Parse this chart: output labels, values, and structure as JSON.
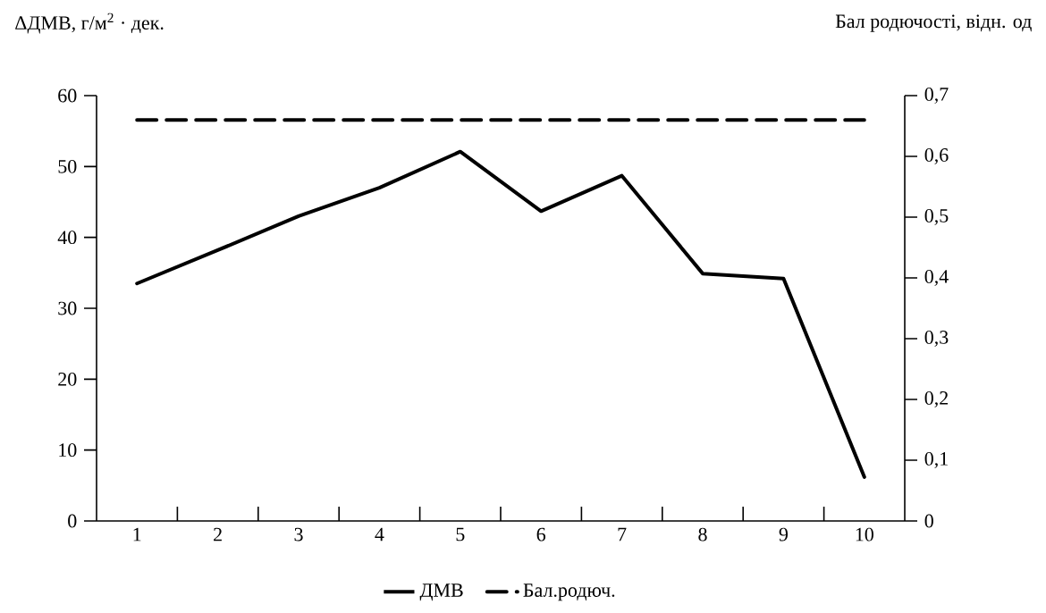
{
  "chart_data": {
    "type": "line",
    "ylabel": "ΔДМВ,  г/м$^{2}$ · дек.",
    "y2label": "Бал родючості, відн. од",
    "categories": [
      "1",
      "2",
      "3",
      "4",
      "5",
      "6",
      "7",
      "8",
      "9",
      "10"
    ],
    "ylim": [
      0,
      60
    ],
    "yticks": [
      0,
      10,
      20,
      30,
      40,
      50,
      60
    ],
    "y2lim": [
      0,
      0.7
    ],
    "y2ticks": [
      0,
      {
        "value": 0.1,
        "label": "0,1"
      },
      {
        "value": 0.2,
        "label": "0,2"
      },
      {
        "value": 0.3,
        "label": "0,3"
      },
      {
        "value": 0.4,
        "label": "0,4"
      },
      {
        "value": 0.5,
        "label": "0,5"
      },
      {
        "value": 0.6,
        "label": "0,6"
      },
      {
        "value": 0.7,
        "label": "0,7"
      }
    ],
    "legend": "bottom",
    "series": [
      {
        "name": "ДМВ",
        "color": "#000000",
        "line_style": "solid",
        "values": [
          33.5,
          38.2,
          43.0,
          47.0,
          52.1,
          43.7,
          48.7,
          34.9,
          34.2,
          6.2
        ]
      },
      {
        "name": "Бал.родюч.",
        "color": "#000000",
        "axis": "y2",
        "line_style": "dashed",
        "values": [
          0.66,
          0.66,
          0.66,
          0.66,
          0.66,
          0.66,
          0.66,
          0.66,
          0.66,
          0.66
        ]
      }
    ]
  }
}
